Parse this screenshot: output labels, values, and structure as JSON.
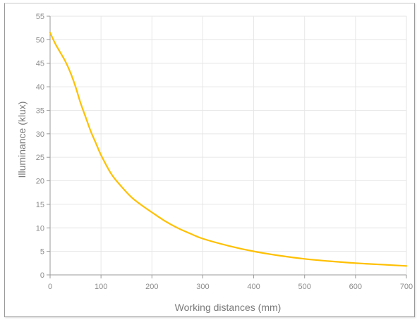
{
  "chart_data": {
    "type": "line",
    "title": "",
    "xlabel": "Working distances (mm)",
    "ylabel": "Illuminance (klux)",
    "xlim": [
      0,
      700
    ],
    "ylim": [
      0,
      55
    ],
    "x_ticks": [
      0,
      100,
      200,
      300,
      400,
      500,
      600,
      700
    ],
    "y_ticks": [
      0,
      5,
      10,
      15,
      20,
      25,
      30,
      35,
      40,
      45,
      50,
      55
    ],
    "grid": true,
    "legend": "none",
    "line_color": "#FFC000",
    "series": [
      {
        "x": [
          0,
          10,
          20,
          30,
          40,
          50,
          60,
          70,
          80,
          90,
          100,
          120,
          140,
          160,
          180,
          200,
          225,
          250,
          275,
          300,
          350,
          400,
          450,
          500,
          550,
          600,
          650,
          700
        ],
        "y": [
          51.5,
          49.2,
          47.3,
          45.4,
          43.0,
          40.0,
          36.5,
          33.5,
          30.5,
          28.0,
          25.5,
          21.5,
          18.8,
          16.5,
          14.8,
          13.3,
          11.5,
          10.0,
          8.8,
          7.7,
          6.2,
          5.0,
          4.1,
          3.4,
          2.9,
          2.5,
          2.2,
          1.9
        ]
      }
    ]
  }
}
